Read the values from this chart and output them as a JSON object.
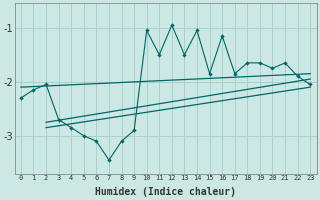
{
  "xlabel": "Humidex (Indice chaleur)",
  "xlim": [
    -0.5,
    23.5
  ],
  "ylim": [
    -3.7,
    -0.55
  ],
  "yticks": [
    -3,
    -2,
    -1
  ],
  "xtick_labels": [
    "0",
    "1",
    "2",
    "3",
    "4",
    "5",
    "6",
    "7",
    "8",
    "9",
    "10",
    "11",
    "12",
    "13",
    "14",
    "15",
    "16",
    "17",
    "18",
    "19",
    "20",
    "21",
    "22",
    "23"
  ],
  "bg_color": "#cce8e4",
  "line_color": "#006666",
  "grid_color": "#aacfcc",
  "main_line_y": [
    -2.3,
    -2.15,
    -2.05,
    -2.7,
    -2.85,
    -3.0,
    -3.1,
    -3.45,
    -3.1,
    -2.9,
    -1.05,
    -1.5,
    -0.95,
    -1.5,
    -1.05,
    -1.85,
    -1.15,
    -1.85,
    -1.65,
    -1.65,
    -1.75,
    -1.65,
    -1.9,
    -2.05
  ],
  "trend1_x": [
    0,
    23
  ],
  "trend1_y": [
    -2.1,
    -1.85
  ],
  "trend2_x": [
    2,
    23
  ],
  "trend2_y": [
    -2.75,
    -1.95
  ],
  "trend3_x": [
    2,
    23
  ],
  "trend3_y": [
    -2.85,
    -2.1
  ],
  "figsize": [
    3.2,
    2.0
  ],
  "dpi": 100
}
